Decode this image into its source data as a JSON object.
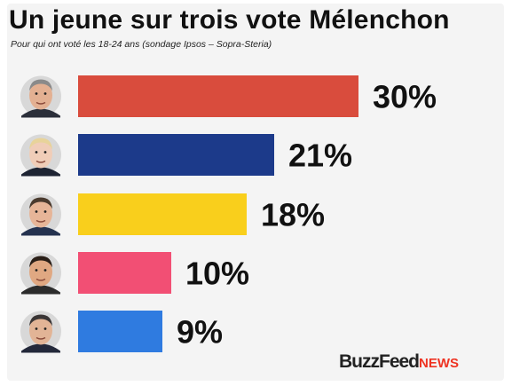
{
  "title": "Un jeune sur trois vote Mélenchon",
  "subtitle": "Pour qui ont voté les 18-24 ans (sondage Ipsos – Sopra-Steria)",
  "logo": {
    "buzz": "BuzzFeed",
    "news": "NEWS"
  },
  "chart_data": {
    "type": "bar",
    "orientation": "horizontal",
    "categories": [
      "",
      "",
      "",
      "",
      ""
    ],
    "values": [
      30,
      21,
      18,
      10,
      9
    ],
    "value_labels": [
      "30%",
      "21%",
      "18%",
      "10%",
      "9%"
    ],
    "colors": [
      "#d94c3d",
      "#1c3a8a",
      "#f9cf1c",
      "#f24f74",
      "#2f7be0"
    ],
    "candidate_photos": [
      "portrait-1",
      "portrait-2",
      "portrait-3",
      "portrait-4",
      "portrait-5"
    ],
    "xlim": [
      0,
      30
    ],
    "unit": "%",
    "grid": false,
    "legend": "none"
  }
}
